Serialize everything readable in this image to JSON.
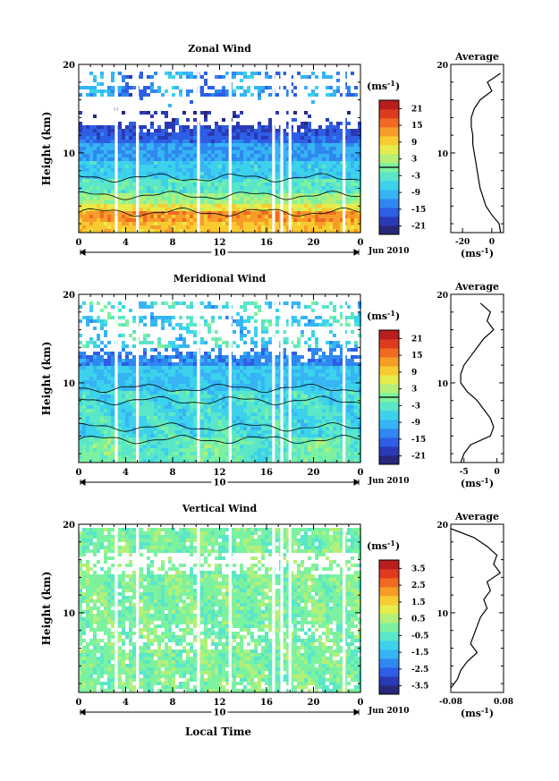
{
  "figure": {
    "x_label": "Local Time",
    "date_label": "Jun 2010",
    "day_label": "10",
    "unit_label": "(ms",
    "unit_sup": "-1",
    "unit_close": ")"
  },
  "chart_data": [
    {
      "type": "heatmap",
      "title": "Zonal Wind",
      "ylabel": "Height (km)",
      "x_ticks": [
        "0",
        "4",
        "8",
        "12",
        "16",
        "20",
        "0"
      ],
      "y_ticks": [
        "20",
        "10"
      ],
      "xlim": [
        0,
        24
      ],
      "ylim": [
        1,
        20
      ],
      "colorbar": {
        "ticks": [
          "21",
          "15",
          "9",
          "3",
          "-3",
          "-9",
          "-15",
          "-21"
        ],
        "range": [
          -24,
          24
        ]
      },
      "data_gaps_hours": [
        3.2,
        5.0,
        10.2,
        12.9,
        16.6,
        17.3,
        18.0,
        22.6
      ],
      "average_profile": {
        "title": "Average",
        "x_ticks": [
          "-20",
          "0"
        ],
        "xlim": [
          -28,
          8
        ],
        "ylim": [
          1,
          20
        ],
        "y_ticks": [
          "20",
          "10"
        ],
        "x": [
          6,
          -3,
          0,
          -8,
          -12,
          -14,
          -14,
          -13,
          -13,
          -12,
          -11,
          -10,
          -9,
          -8,
          -6,
          -4,
          0,
          5,
          6
        ],
        "y": [
          19,
          18,
          17,
          16,
          15,
          14,
          13,
          12,
          11,
          10,
          9,
          8,
          7,
          6,
          5,
          4,
          3,
          2,
          1
        ]
      }
    },
    {
      "type": "heatmap",
      "title": "Meridional Wind",
      "ylabel": "Height (km)",
      "x_ticks": [
        "0",
        "4",
        "8",
        "12",
        "16",
        "20",
        "0"
      ],
      "y_ticks": [
        "20",
        "10"
      ],
      "xlim": [
        0,
        24
      ],
      "ylim": [
        1,
        20
      ],
      "colorbar": {
        "ticks": [
          "21",
          "15",
          "9",
          "3",
          "-3",
          "-9",
          "-15",
          "-21"
        ],
        "range": [
          -24,
          24
        ]
      },
      "data_gaps_hours": [
        3.2,
        5.0,
        10.2,
        12.9,
        16.6,
        17.3,
        18.0,
        22.6
      ],
      "average_profile": {
        "title": "Average",
        "x_ticks": [
          "-5",
          "0"
        ],
        "xlim": [
          -7,
          1
        ],
        "ylim": [
          1,
          20
        ],
        "y_ticks": [
          "20",
          "10"
        ],
        "x": [
          -2.5,
          -1.0,
          -1.5,
          -0.5,
          -2.0,
          -3.0,
          -4.0,
          -5.0,
          -5.5,
          -5.5,
          -4.5,
          -3.0,
          -2.0,
          -1.0,
          -0.5,
          -1.0,
          -4.0,
          -5.0,
          -5.5
        ],
        "y": [
          19,
          18,
          17,
          16,
          15,
          14,
          13,
          12,
          11,
          10,
          9,
          8,
          7,
          6,
          5,
          4,
          3,
          2,
          1
        ]
      }
    },
    {
      "type": "heatmap",
      "title": "Vertical Wind",
      "ylabel": "Height (km)",
      "x_ticks": [
        "0",
        "4",
        "8",
        "12",
        "16",
        "20",
        "0"
      ],
      "y_ticks": [
        "20",
        "10"
      ],
      "xlim": [
        0,
        24
      ],
      "ylim": [
        1,
        20
      ],
      "colorbar": {
        "ticks": [
          "3.5",
          "2.5",
          "1.5",
          "0.5",
          "-0.5",
          "-1.5",
          "-2.5",
          "-3.5"
        ],
        "range": [
          -4,
          4
        ]
      },
      "data_gaps_hours": [
        3.2,
        5.0,
        10.2,
        12.9,
        16.6,
        17.3,
        18.0,
        22.6
      ],
      "average_profile": {
        "title": "Average",
        "x_ticks": [
          "-0.08",
          "0.08"
        ],
        "xlim": [
          -0.08,
          0.08
        ],
        "ylim": [
          1,
          20
        ],
        "y_ticks": [
          "20",
          "10"
        ],
        "x": [
          -0.08,
          -0.01,
          0.03,
          0.06,
          0.05,
          0.07,
          0.03,
          0.04,
          0.02,
          0.03,
          0.01,
          0.0,
          -0.01,
          -0.02,
          0.0,
          -0.03,
          -0.05,
          -0.06,
          -0.08
        ],
        "y": [
          19.5,
          18.5,
          17.5,
          16.5,
          15.5,
          14.5,
          13.5,
          12.5,
          11.5,
          10.5,
          9.5,
          8.5,
          7.5,
          6.5,
          5.5,
          4.5,
          3.5,
          2.5,
          1.5
        ]
      }
    }
  ]
}
